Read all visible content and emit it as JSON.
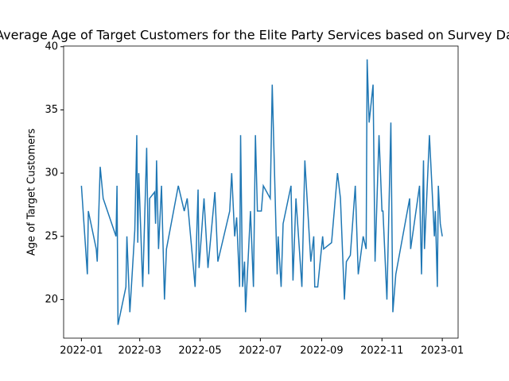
{
  "chart_data": {
    "type": "line",
    "title": "Average Age of Target Customers for the Elite Party Services based on Survey Data",
    "y_label": "Age of Target Customers",
    "x": [
      0,
      6,
      7,
      15,
      16,
      19,
      22,
      35,
      36,
      37,
      45,
      46,
      48,
      49,
      54,
      56,
      57,
      58,
      62,
      66,
      68,
      69,
      74,
      75,
      76,
      78,
      81,
      84,
      86,
      98,
      104,
      107,
      115,
      118,
      119,
      124,
      128,
      135,
      138,
      150,
      152,
      155,
      157,
      160,
      161,
      163,
      165,
      166,
      171,
      174,
      176,
      178,
      182,
      184,
      191,
      193,
      198,
      199,
      202,
      204,
      212,
      214,
      217,
      223,
      226,
      232,
      235,
      236,
      239,
      244,
      245,
      253,
      259,
      262,
      266,
      268,
      272,
      277,
      280,
      285,
      288,
      289,
      291,
      295,
      297,
      301,
      304,
      305,
      309,
      313,
      315,
      318,
      332,
      333,
      342,
      344,
      346,
      347,
      352,
      357,
      358,
      360,
      361,
      363,
      365
    ],
    "series": [
      {
        "color": "#1f77b4",
        "values": [
          29,
          22,
          27,
          24,
          23,
          30.5,
          28,
          25,
          29,
          18,
          21,
          25,
          21,
          19,
          25.5,
          33,
          24.5,
          30,
          21,
          32,
          22,
          28,
          28.5,
          26,
          31,
          24,
          29,
          20,
          24,
          29,
          27,
          28,
          21,
          28.7,
          22.5,
          28,
          22.5,
          28.5,
          23,
          27,
          30,
          25,
          26.5,
          21,
          33,
          21,
          23,
          19,
          27,
          21,
          33,
          27,
          27,
          29,
          28,
          37,
          22,
          25,
          21,
          26,
          29,
          21.5,
          28,
          21,
          31,
          23,
          25,
          21,
          21,
          25,
          24,
          24.5,
          30,
          28,
          20,
          23,
          23.5,
          29,
          22,
          25,
          24,
          39,
          34,
          37,
          23,
          33,
          27,
          27,
          20,
          34,
          19,
          22,
          28,
          24,
          29,
          22,
          31,
          24,
          33,
          25,
          27,
          21,
          29,
          26,
          25
        ]
      }
    ],
    "xlim": [
      -18,
      381
    ],
    "xticks": [
      {
        "value": 0,
        "label": "2022-01"
      },
      {
        "value": 59,
        "label": "2022-03"
      },
      {
        "value": 120,
        "label": "2022-05"
      },
      {
        "value": 181,
        "label": "2022-07"
      },
      {
        "value": 243,
        "label": "2022-09"
      },
      {
        "value": 304,
        "label": "2022-11"
      },
      {
        "value": 365,
        "label": "2023-01"
      }
    ],
    "ylim": [
      16.95,
      40.05
    ],
    "yticks": [
      20,
      25,
      30,
      35,
      40
    ]
  }
}
